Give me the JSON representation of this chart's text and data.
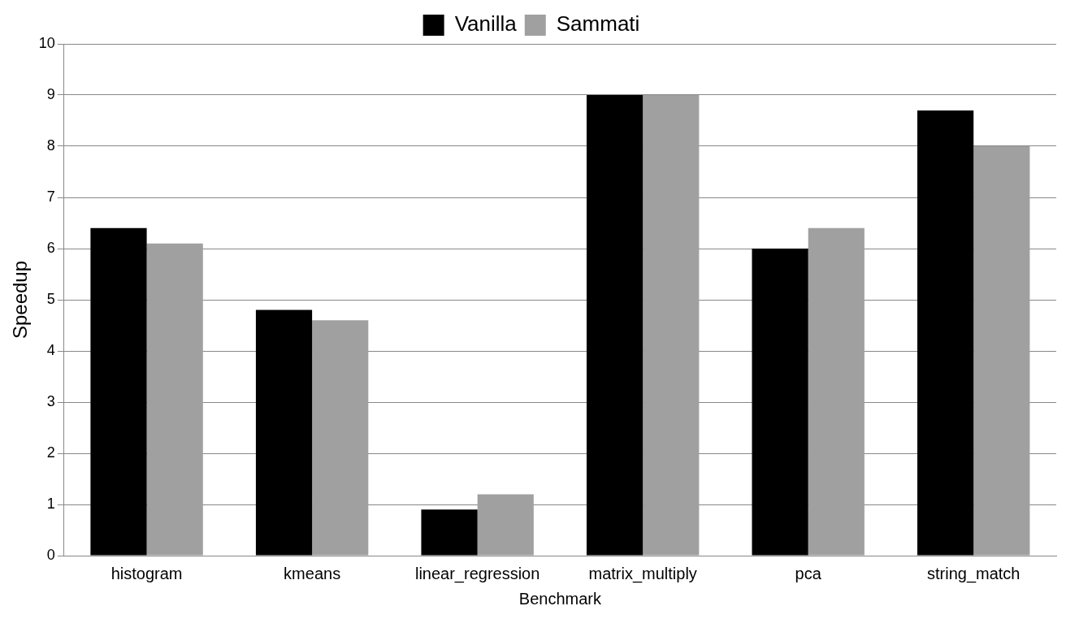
{
  "chart_data": {
    "type": "bar",
    "xlabel": "Benchmark",
    "ylabel": "Speedup",
    "categories": [
      "histogram",
      "kmeans",
      "linear_regression",
      "matrix_multiply",
      "pca",
      "string_match"
    ],
    "series": [
      {
        "name": "Vanilla",
        "color": "#000000",
        "values": [
          6.4,
          4.8,
          0.9,
          9.0,
          6.0,
          8.7
        ]
      },
      {
        "name": "Sammati",
        "color": "#a0a0a0",
        "values": [
          6.1,
          4.6,
          1.2,
          9.0,
          6.4,
          8.0
        ]
      }
    ],
    "ylim": [
      0,
      10
    ],
    "yticks": [
      0,
      1,
      2,
      3,
      4,
      5,
      6,
      7,
      8,
      9,
      10
    ],
    "grid": "y",
    "legend": "top"
  }
}
